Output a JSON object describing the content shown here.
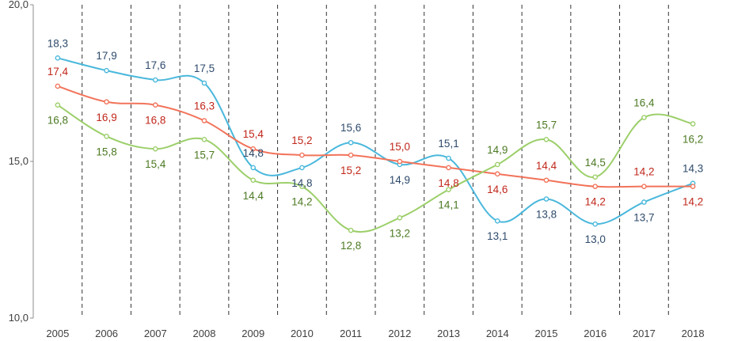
{
  "chart_data": {
    "type": "line",
    "title": "",
    "xlabel": "",
    "ylabel": "",
    "categories": [
      "2005",
      "2006",
      "2007",
      "2008",
      "2009",
      "2010",
      "2011",
      "2012",
      "2013",
      "2014",
      "2015",
      "2016",
      "2017",
      "2018"
    ],
    "ylim": [
      10,
      20
    ],
    "yticks": [
      10,
      15,
      20
    ],
    "ytick_labels": [
      "10,0",
      "15,0",
      "20,0"
    ],
    "grid": "vertical-dashed",
    "legend": "none",
    "series": [
      {
        "color": "#4ab8dc",
        "label_color": "#2e4a6b",
        "values": [
          18.3,
          17.9,
          17.6,
          17.5,
          14.8,
          14.8,
          15.6,
          14.9,
          15.1,
          13.1,
          13.8,
          13.0,
          13.7,
          14.3
        ],
        "labels": [
          "18,3",
          "17,9",
          "17,6",
          "17,5",
          "14,8",
          "14,8",
          "15,6",
          "14,9",
          "15,1",
          "13,1",
          "13,8",
          "13,0",
          "13,7",
          "14,3"
        ]
      },
      {
        "color": "#f2735a",
        "label_color": "#c0271b",
        "values": [
          17.4,
          16.9,
          16.8,
          16.3,
          15.4,
          15.2,
          15.2,
          15.0,
          14.8,
          14.6,
          14.4,
          14.2,
          14.2,
          14.2
        ],
        "labels": [
          "17,4",
          "16,9",
          "16,8",
          "16,3",
          "15,4",
          "15,2",
          "15,2",
          "15,0",
          "14,8",
          "14,6",
          "14,4",
          "14,2",
          "14,2",
          "14,2"
        ]
      },
      {
        "color": "#9ccf6a",
        "label_color": "#4c7a23",
        "values": [
          16.8,
          15.8,
          15.4,
          15.7,
          14.4,
          14.2,
          12.8,
          13.2,
          14.1,
          14.9,
          15.7,
          14.5,
          16.4,
          16.2
        ],
        "labels": [
          "16,8",
          "15,8",
          "15,4",
          "15,7",
          "14,4",
          "14,2",
          "12,8",
          "13,2",
          "14,1",
          "14,9",
          "15,7",
          "14,5",
          "16,4",
          "16,2"
        ]
      }
    ]
  }
}
